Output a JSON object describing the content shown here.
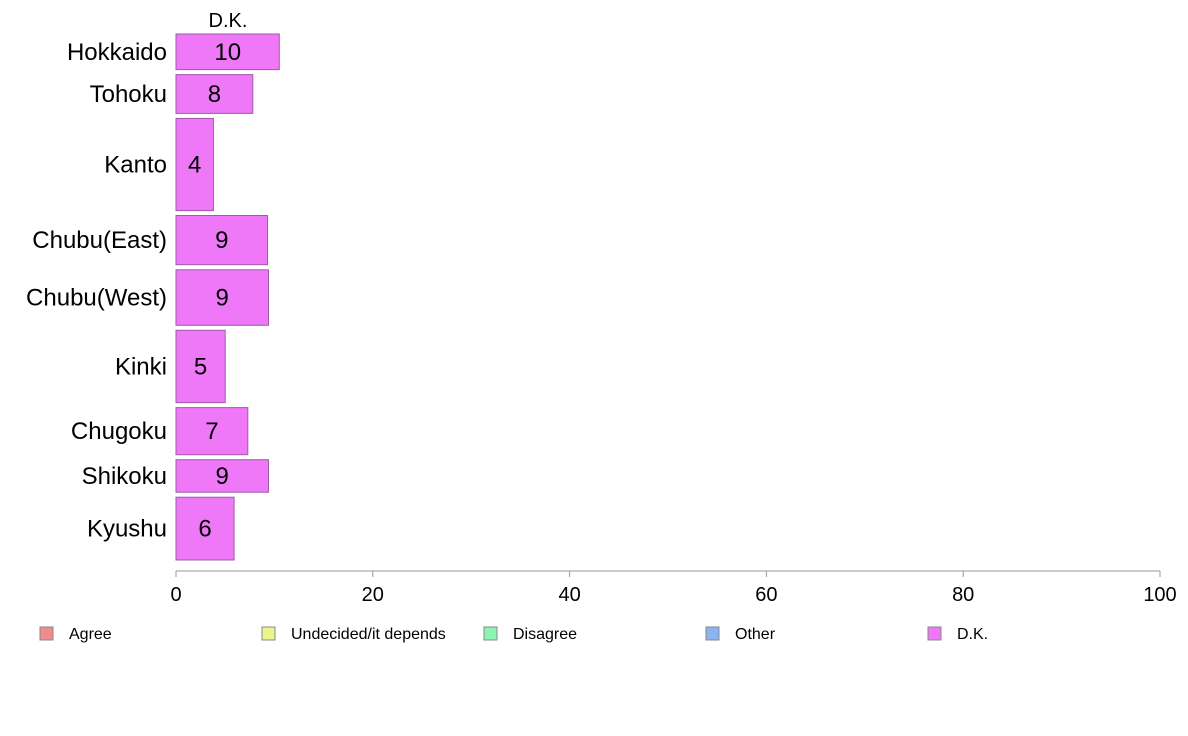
{
  "chart_data": {
    "type": "bar",
    "orientation": "horizontal",
    "stacked": true,
    "column_header": "D.K.",
    "categories": [
      "Hokkaido",
      "Tohoku",
      "Kanto",
      "Chubu(East)",
      "Chubu(West)",
      "Kinki",
      "Chugoku",
      "Shikoku",
      "Kyushu"
    ],
    "series": [
      {
        "name": "Agree",
        "color": "#f08c8c",
        "values": [
          null,
          null,
          null,
          null,
          null,
          null,
          null,
          null,
          null
        ]
      },
      {
        "name": "Undecided/it depends",
        "color": "#ecf58c",
        "values": [
          null,
          null,
          null,
          null,
          null,
          null,
          null,
          null,
          null
        ]
      },
      {
        "name": "Disagree",
        "color": "#8cf5b4",
        "values": [
          null,
          null,
          null,
          null,
          null,
          null,
          null,
          null,
          null
        ]
      },
      {
        "name": "Other",
        "color": "#8cb4f5",
        "values": [
          null,
          null,
          null,
          null,
          null,
          null,
          null,
          null,
          null
        ]
      },
      {
        "name": "D.K.",
        "color": "#ee78f8",
        "values": [
          10,
          8,
          4,
          9,
          9,
          5,
          7,
          9,
          6
        ]
      }
    ],
    "bar_values": [
      10.5,
      7.8,
      3.8,
      9.3,
      9.4,
      5.0,
      7.3,
      9.4,
      5.9
    ],
    "bar_labels": [
      "10",
      "8",
      "4",
      "9",
      "9",
      "5",
      "7",
      "9",
      "6"
    ],
    "category_weights": [
      34,
      37,
      88,
      47,
      53,
      69,
      45,
      31,
      60
    ],
    "xlim": [
      0,
      100
    ],
    "xticks": [
      0,
      20,
      40,
      60,
      80,
      100
    ],
    "xtick_labels": [
      "0",
      "20",
      "40",
      "60",
      "80",
      "100"
    ],
    "xlabel": "",
    "ylabel": "",
    "title": "",
    "grid": false,
    "legend_position": "bottom",
    "bar_edge_color": "#a05aa8",
    "axis_color": "#9a9a9a"
  }
}
